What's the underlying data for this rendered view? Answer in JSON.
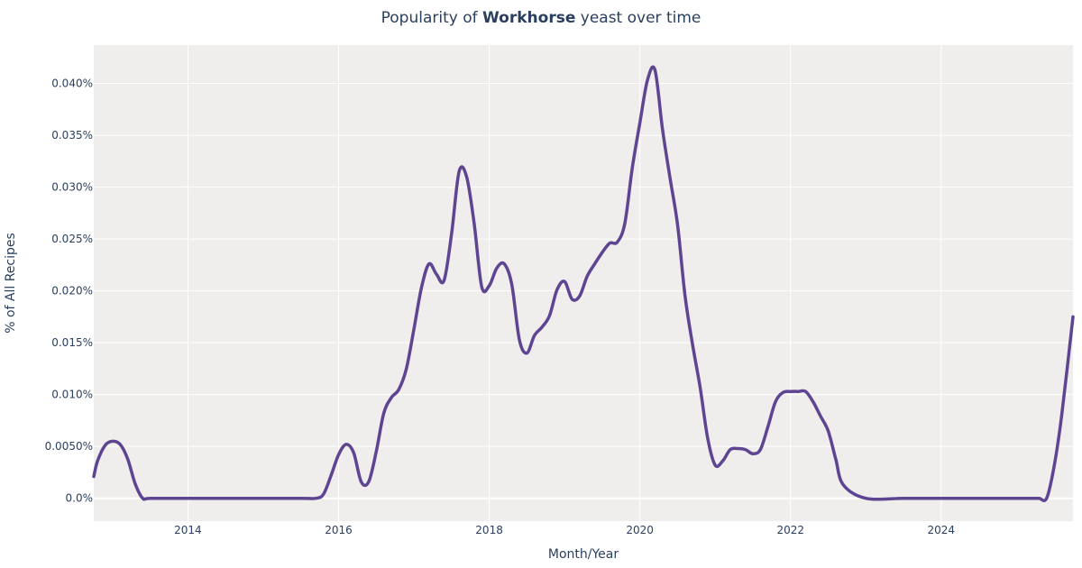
{
  "colors": {
    "plot_background": "#efeeed",
    "line": "#5e4592",
    "grid": "#ffffff",
    "text": "#2a3f5f"
  },
  "chart_data": {
    "type": "line",
    "title": {
      "prefix": "Popularity of ",
      "bold": "Workhorse",
      "suffix": " yeast over time"
    },
    "xlabel": "Month/Year",
    "ylabel": "% of All Recipes",
    "x_ticks": [
      2014,
      2016,
      2018,
      2020,
      2022,
      2024
    ],
    "y_ticks": [
      {
        "value": 0,
        "label": "0.0%"
      },
      {
        "value": 0.005,
        "label": "0.0050%"
      },
      {
        "value": 0.01,
        "label": "0.010%"
      },
      {
        "value": 0.015,
        "label": "0.015%"
      },
      {
        "value": 0.02,
        "label": "0.020%"
      },
      {
        "value": 0.025,
        "label": "0.025%"
      },
      {
        "value": 0.03,
        "label": "0.030%"
      },
      {
        "value": 0.035,
        "label": "0.035%"
      },
      {
        "value": 0.04,
        "label": "0.040%"
      }
    ],
    "xlim": [
      2012.75,
      2025.75
    ],
    "ylim": [
      -0.0022,
      0.0437
    ],
    "grid": true,
    "legend": "none",
    "series": [
      {
        "x": [
          2012.75,
          2012.8,
          2012.9,
          2013.0,
          2013.1,
          2013.2,
          2013.3,
          2013.4,
          2013.5,
          2014.0,
          2014.5,
          2015.0,
          2015.5,
          2015.7,
          2015.8,
          2015.9,
          2016.0,
          2016.1,
          2016.2,
          2016.3,
          2016.4,
          2016.5,
          2016.6,
          2016.7,
          2016.8,
          2016.9,
          2017.0,
          2017.1,
          2017.2,
          2017.3,
          2017.4,
          2017.5,
          2017.6,
          2017.7,
          2017.8,
          2017.9,
          2018.0,
          2018.1,
          2018.2,
          2018.3,
          2018.4,
          2018.5,
          2018.6,
          2018.7,
          2018.8,
          2018.9,
          2019.0,
          2019.1,
          2019.2,
          2019.3,
          2019.4,
          2019.5,
          2019.6,
          2019.7,
          2019.8,
          2019.9,
          2020.0,
          2020.1,
          2020.2,
          2020.3,
          2020.4,
          2020.5,
          2020.6,
          2020.7,
          2020.8,
          2020.9,
          2021.0,
          2021.1,
          2021.2,
          2021.3,
          2021.4,
          2021.5,
          2021.6,
          2021.7,
          2021.8,
          2021.9,
          2022.0,
          2022.1,
          2022.2,
          2022.3,
          2022.4,
          2022.5,
          2022.6,
          2022.7,
          2023.0,
          2023.5,
          2024.0,
          2024.5,
          2025.0,
          2025.2,
          2025.3,
          2025.4,
          2025.5,
          2025.6,
          2025.75
        ],
        "y": [
          0.0021,
          0.0036,
          0.0051,
          0.0055,
          0.0052,
          0.0038,
          0.0014,
          0.0,
          0.0,
          0.0,
          0.0,
          0.0,
          0.0,
          0.0,
          0.0004,
          0.0022,
          0.0042,
          0.0052,
          0.0044,
          0.0016,
          0.0016,
          0.0045,
          0.0082,
          0.0097,
          0.0105,
          0.0125,
          0.0163,
          0.0203,
          0.0226,
          0.0216,
          0.021,
          0.0255,
          0.0315,
          0.031,
          0.0265,
          0.0204,
          0.0205,
          0.0222,
          0.0226,
          0.0206,
          0.0153,
          0.014,
          0.0157,
          0.0165,
          0.0176,
          0.0201,
          0.0209,
          0.0192,
          0.0195,
          0.0214,
          0.0226,
          0.0237,
          0.0246,
          0.0247,
          0.0265,
          0.0319,
          0.0362,
          0.0403,
          0.0413,
          0.0356,
          0.0309,
          0.0264,
          0.0195,
          0.0148,
          0.0107,
          0.0058,
          0.0032,
          0.0036,
          0.0047,
          0.0048,
          0.0047,
          0.0043,
          0.0047,
          0.0069,
          0.0093,
          0.0102,
          0.0103,
          0.0103,
          0.0103,
          0.0093,
          0.0079,
          0.0065,
          0.0038,
          0.0013,
          0.0,
          0.0,
          0.0,
          0.0,
          0.0,
          0.0,
          0.0,
          0.0,
          0.0031,
          0.008,
          0.0175
        ]
      }
    ]
  }
}
